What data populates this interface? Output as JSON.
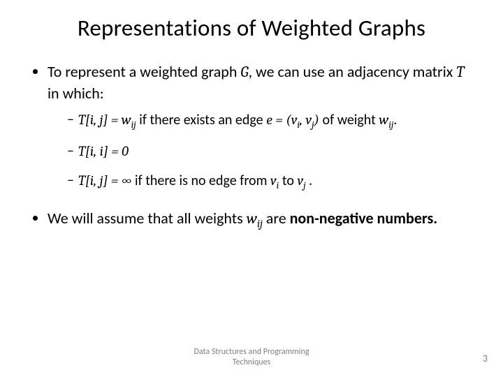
{
  "title": "Representations of Weighted Graphs",
  "b1_pre": "To represent a weighted graph ",
  "b1_G": "G",
  "b1_mid": ", we can use an adjacency matrix ",
  "b1_T": "T",
  "b1_post": " in which:",
  "s1_lhs": "T[i, j] = w",
  "s1_sub": "ij",
  "s1_mid": " if there exists an edge ",
  "s1_e": "e = (v",
  "s1_sub_i": "i",
  "s1_comma": ", v",
  "s1_sub_j": "j",
  "s1_close": ")",
  "s1_post": " of weight ",
  "s1_w": "w",
  "s1_wsub": "ij",
  "s1_dot": ".",
  "s2": "T[i, i] = 0",
  "s3_lhs": "T[i, j] = ∞",
  "s3_mid": " if there is no edge from ",
  "s3_vi": "v",
  "s3_i": "i",
  "s3_to": " to ",
  "s3_vj": "v",
  "s3_j": "j",
  "s3_dot": " .",
  "b2_pre": "We will assume that all weights ",
  "b2_w": "w",
  "b2_sub": "ij",
  "b2_mid": " are ",
  "b2_bold": "non-negative numbers.",
  "footer1": "Data Structures and Programming",
  "footer2": "Techniques",
  "page": "3"
}
